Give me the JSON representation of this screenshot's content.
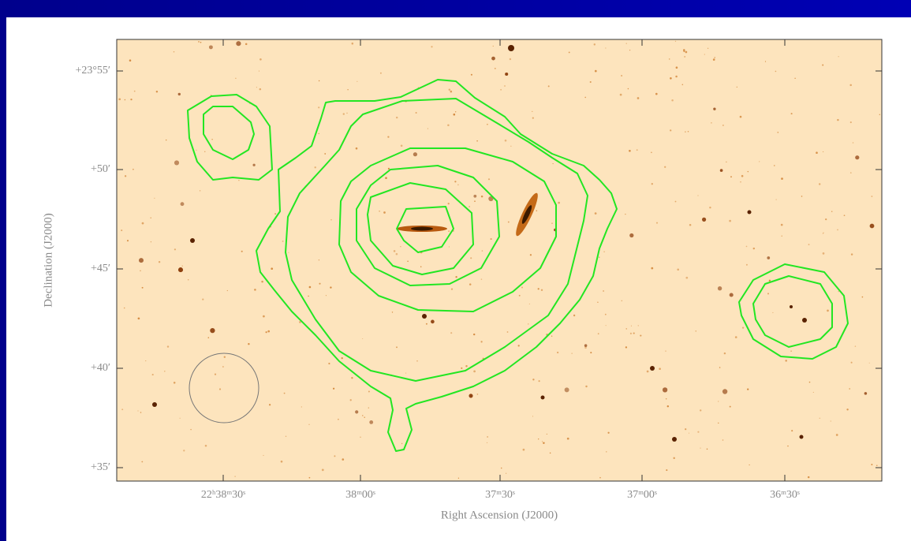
{
  "figure": {
    "x_axis_label": "Right Ascension (J2000)",
    "y_axis_label": "Declination (J2000)",
    "x_tick_labels": [
      "22ʰ38ᵐ30ˢ",
      "38ᵐ00ˢ",
      "37ᵐ30ˢ",
      "37ᵐ00ˢ",
      "36ᵐ30ˢ"
    ],
    "y_tick_labels": [
      "+23°55′",
      "+50′",
      "+45′",
      "+40′",
      "+35′"
    ]
  }
}
